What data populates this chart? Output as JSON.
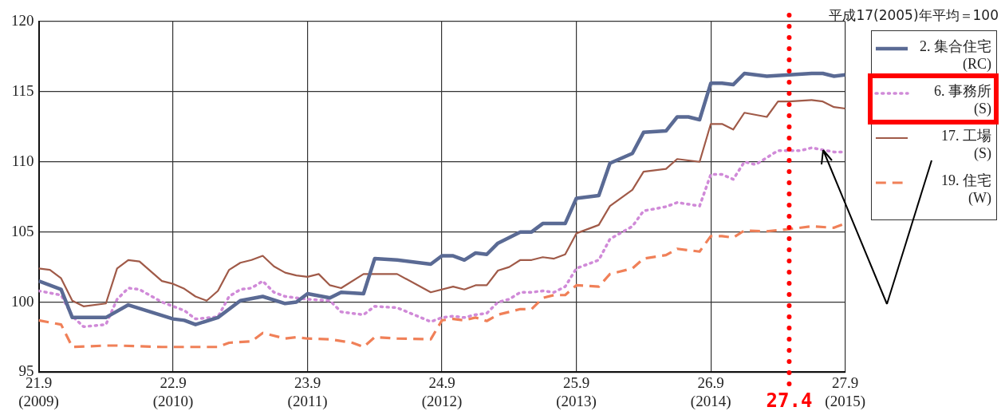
{
  "chart_data": {
    "type": "line",
    "xlim": [
      "2009-09",
      "2015-09"
    ],
    "xticks": [
      {
        "value": "2009-09",
        "label": "21.9\n(2009)"
      },
      {
        "value": "2010-09",
        "label": "22.9\n(2010)"
      },
      {
        "value": "2011-09",
        "label": "23.9\n(2011)"
      },
      {
        "value": "2012-09",
        "label": "24.9\n(2012)"
      },
      {
        "value": "2013-09",
        "label": "25.9\n(2013)"
      },
      {
        "value": "2014-09",
        "label": "26.9\n(2014)"
      },
      {
        "value": "2015-09",
        "label": "27.9\n(2015)"
      }
    ],
    "ylim": [
      95,
      120
    ],
    "yticks": [
      95,
      100,
      105,
      110,
      115,
      120
    ],
    "grid": true,
    "legend": "right",
    "marker": "none",
    "annotations": [
      "平成17(2005)年平均＝100"
    ],
    "ref_lines": [
      {
        "axis": "x",
        "value": "2015-04",
        "label": "27.4",
        "color": "#ff0000",
        "line_style": "dotted"
      }
    ],
    "series": [
      {
        "name": "2. 集合住宅\n(RC)",
        "color": "#5a6a94",
        "line_style": "solid",
        "x": [
          "2009-09",
          "2009-11",
          "2009-12",
          "2010-03",
          "2010-05",
          "2010-09",
          "2010-10",
          "2010-11",
          "2011-01",
          "2011-03",
          "2011-05",
          "2011-07",
          "2011-08",
          "2011-09",
          "2011-11",
          "2011-12",
          "2012-02",
          "2012-03",
          "2012-05",
          "2012-08",
          "2012-09",
          "2012-10",
          "2012-11",
          "2012-12",
          "2013-01",
          "2013-02",
          "2013-04",
          "2013-05",
          "2013-06",
          "2013-08",
          "2013-09",
          "2013-11",
          "2013-12",
          "2014-02",
          "2014-03",
          "2014-05",
          "2014-06",
          "2014-07",
          "2014-08",
          "2014-09",
          "2014-10",
          "2014-11",
          "2014-12",
          "2015-02",
          "2015-04",
          "2015-06",
          "2015-07",
          "2015-08",
          "2015-09"
        ],
        "values": [
          101.5,
          100.9,
          98.9,
          98.9,
          99.8,
          98.8,
          98.7,
          98.4,
          98.9,
          100.1,
          100.4,
          99.9,
          100.0,
          100.6,
          100.3,
          100.7,
          100.6,
          103.1,
          103.0,
          102.7,
          103.3,
          103.3,
          103.0,
          103.5,
          103.4,
          104.2,
          105.0,
          105.0,
          105.6,
          105.6,
          107.4,
          107.6,
          109.9,
          110.6,
          112.1,
          112.2,
          113.2,
          113.2,
          113.0,
          115.6,
          115.6,
          115.5,
          116.3,
          116.1,
          116.2,
          116.3,
          116.3,
          116.1,
          116.2
        ]
      },
      {
        "name": "6. 事務所\n(S)",
        "color": "#d08ad8",
        "line_style": "dotted",
        "x": [
          "2009-09",
          "2009-11",
          "2009-12",
          "2010-01",
          "2010-03",
          "2010-04",
          "2010-05",
          "2010-06",
          "2010-08",
          "2010-09",
          "2010-10",
          "2010-11",
          "2011-01",
          "2011-02",
          "2011-03",
          "2011-04",
          "2011-05",
          "2011-06",
          "2011-07",
          "2011-08",
          "2011-09",
          "2011-11",
          "2011-12",
          "2012-02",
          "2012-03",
          "2012-05",
          "2012-08",
          "2012-09",
          "2012-10",
          "2012-11",
          "2012-12",
          "2013-01",
          "2013-02",
          "2013-03",
          "2013-04",
          "2013-05",
          "2013-06",
          "2013-07",
          "2013-08",
          "2013-09",
          "2013-11",
          "2013-12",
          "2014-02",
          "2014-03",
          "2014-05",
          "2014-06",
          "2014-08",
          "2014-09",
          "2014-10",
          "2014-11",
          "2014-12",
          "2015-01",
          "2015-03",
          "2015-04",
          "2015-05",
          "2015-06",
          "2015-08",
          "2015-09"
        ],
        "values": [
          100.8,
          100.5,
          99.0,
          98.25,
          98.4,
          100.2,
          101.0,
          100.9,
          100.0,
          99.7,
          99.4,
          98.8,
          98.95,
          100.4,
          100.9,
          101.0,
          101.5,
          100.7,
          100.4,
          100.3,
          100.2,
          100.1,
          99.3,
          99.1,
          99.7,
          99.6,
          98.6,
          98.9,
          99.0,
          98.9,
          99.1,
          99.2,
          100.0,
          100.2,
          100.7,
          100.7,
          100.8,
          100.7,
          101.1,
          102.4,
          103.0,
          104.5,
          105.4,
          106.5,
          106.8,
          107.1,
          106.85,
          109.1,
          109.1,
          108.75,
          110.0,
          109.8,
          110.8,
          110.8,
          110.8,
          111.0,
          110.7,
          110.7
        ]
      },
      {
        "name": "17. 工場\n(S)",
        "color": "#a05a48",
        "line_style": "solid",
        "x": [
          "2009-09",
          "2009-10",
          "2009-11",
          "2009-12",
          "2010-01",
          "2010-03",
          "2010-04",
          "2010-05",
          "2010-06",
          "2010-08",
          "2010-09",
          "2010-10",
          "2010-11",
          "2010-12",
          "2011-01",
          "2011-02",
          "2011-03",
          "2011-04",
          "2011-05",
          "2011-06",
          "2011-07",
          "2011-08",
          "2011-09",
          "2011-10",
          "2011-11",
          "2011-12",
          "2012-02",
          "2012-03",
          "2012-05",
          "2012-08",
          "2012-10",
          "2012-11",
          "2012-12",
          "2013-01",
          "2013-02",
          "2013-03",
          "2013-04",
          "2013-05",
          "2013-06",
          "2013-07",
          "2013-08",
          "2013-09",
          "2013-11",
          "2013-12",
          "2014-02",
          "2014-03",
          "2014-05",
          "2014-06",
          "2014-08",
          "2014-09",
          "2014-10",
          "2014-11",
          "2014-12",
          "2015-02",
          "2015-03",
          "2015-04",
          "2015-06",
          "2015-07",
          "2015-08",
          "2015-09"
        ],
        "values": [
          102.4,
          102.3,
          101.7,
          100.1,
          99.7,
          99.9,
          102.4,
          103.0,
          102.9,
          101.5,
          101.3,
          100.95,
          100.4,
          100.1,
          100.8,
          102.3,
          102.8,
          103.0,
          103.3,
          102.55,
          102.1,
          101.9,
          101.8,
          102.0,
          101.2,
          101.0,
          102.0,
          102.0,
          102.0,
          100.7,
          101.1,
          100.9,
          101.2,
          101.2,
          102.25,
          102.5,
          103.0,
          103.0,
          103.2,
          103.1,
          103.4,
          104.9,
          105.5,
          106.85,
          108.0,
          109.3,
          109.5,
          110.2,
          110.0,
          112.7,
          112.7,
          112.3,
          113.5,
          113.2,
          114.3,
          114.3,
          114.4,
          114.3,
          113.9,
          113.8
        ]
      },
      {
        "name": "19. 住宅\n(W)",
        "color": "#f08058",
        "line_style": "dashed",
        "x": [
          "2009-09",
          "2009-11",
          "2009-12",
          "2010-03",
          "2010-04",
          "2010-08",
          "2010-11",
          "2011-01",
          "2011-02",
          "2011-04",
          "2011-05",
          "2011-07",
          "2011-08",
          "2011-09",
          "2011-11",
          "2012-01",
          "2012-02",
          "2012-03",
          "2012-05",
          "2012-08",
          "2012-09",
          "2012-10",
          "2012-11",
          "2012-12",
          "2013-01",
          "2013-02",
          "2013-03",
          "2013-04",
          "2013-05",
          "2013-06",
          "2013-07",
          "2013-08",
          "2013-09",
          "2013-11",
          "2013-12",
          "2014-02",
          "2014-03",
          "2014-05",
          "2014-06",
          "2014-08",
          "2014-09",
          "2014-10",
          "2014-11",
          "2014-12",
          "2015-02",
          "2015-04",
          "2015-06",
          "2015-08",
          "2015-09"
        ],
        "values": [
          98.7,
          98.4,
          96.8,
          96.9,
          96.9,
          96.8,
          96.8,
          96.8,
          97.1,
          97.2,
          97.8,
          97.4,
          97.5,
          97.4,
          97.35,
          97.1,
          96.8,
          97.5,
          97.4,
          97.35,
          98.7,
          98.8,
          98.7,
          98.9,
          98.65,
          99.1,
          99.3,
          99.5,
          99.5,
          100.3,
          100.5,
          100.5,
          101.2,
          101.1,
          102.0,
          102.4,
          103.1,
          103.35,
          103.8,
          103.6,
          104.7,
          104.7,
          104.6,
          105.1,
          105.05,
          105.2,
          105.4,
          105.3,
          105.6
        ]
      }
    ]
  }
}
